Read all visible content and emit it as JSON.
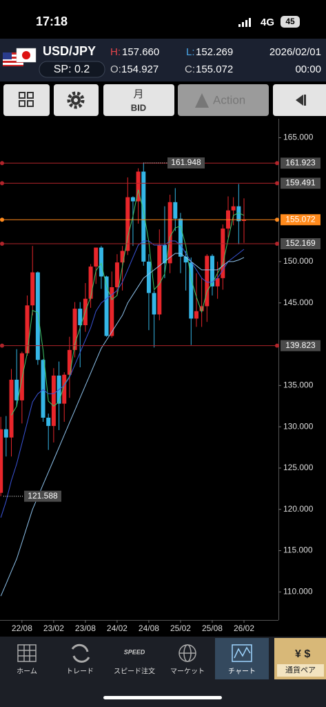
{
  "status": {
    "time": "17:18",
    "network": "4G",
    "battery": "45"
  },
  "header": {
    "pair": "USD/JPY",
    "spread": "SP: 0.2",
    "high_label": "H:",
    "high": "157.660",
    "low_label": "L:",
    "low": "152.269",
    "open_label": "O:",
    "open": "154.927",
    "close_label": "C:",
    "close": "155.072",
    "date": "2026/02/01",
    "time": "00:00"
  },
  "toolbar": {
    "period": "月",
    "price": "BID",
    "action": "Action"
  },
  "chart_data": {
    "type": "candlestick",
    "categories": [
      null,
      null,
      null,
      null,
      "22/08",
      null,
      null,
      null,
      null,
      null,
      "23/02",
      null,
      null,
      null,
      null,
      null,
      "23/08",
      null,
      null,
      null,
      null,
      null,
      "24/02",
      null,
      null,
      null,
      null,
      null,
      "24/08",
      null,
      null,
      null,
      null,
      null,
      "25/02",
      null,
      null,
      null,
      null,
      null,
      "25/08",
      null,
      null,
      null,
      null,
      null,
      "26/02"
    ],
    "open": [
      122.0,
      129.7,
      128.7,
      135.7,
      133.2,
      138.9,
      144.7,
      148.7,
      138.1,
      131.1,
      130.1,
      136.2,
      132.8,
      136.3,
      139.3,
      144.3,
      142.3,
      145.5,
      149.4,
      151.7,
      148.2,
      141.0,
      146.9,
      149.9,
      151.3,
      157.8,
      157.3,
      160.9,
      150.0,
      146.2,
      143.6,
      152.0,
      149.8,
      157.2,
      155.2,
      150.6,
      149.9,
      143.1,
      144.0,
      144.6,
      150.7,
      147.0,
      148.0,
      154.0,
      156.2,
      156.7,
      154.927
    ],
    "high": [
      131.2,
      131.3,
      137.0,
      139.4,
      139.1,
      145.9,
      151.9,
      148.8,
      138.2,
      131.6,
      137.1,
      137.9,
      136.6,
      140.9,
      145.1,
      145.1,
      147.4,
      149.7,
      151.7,
      151.9,
      148.3,
      148.8,
      150.9,
      151.9,
      160.2,
      157.9,
      161.3,
      161.948,
      150.9,
      146.5,
      153.9,
      156.7,
      158.1,
      158.9,
      155.9,
      151.3,
      150.5,
      148.6,
      148.0,
      150.9,
      150.9,
      150.0,
      154.5,
      157.9,
      157.8,
      159.4,
      157.66
    ],
    "low": [
      121.588,
      126.4,
      126.4,
      132.5,
      130.4,
      138.6,
      143.5,
      137.5,
      130.6,
      127.2,
      128.1,
      129.6,
      130.6,
      133.5,
      138.4,
      137.2,
      141.5,
      144.4,
      147.3,
      146.7,
      140.9,
      140.8,
      145.9,
      146.5,
      150.8,
      151.9,
      154.6,
      149.5,
      141.7,
      139.6,
      142.9,
      148.0,
      148.6,
      153.7,
      148.6,
      146.5,
      139.9,
      142.1,
      142.1,
      142.7,
      145.9,
      145.5,
      146.6,
      152.9,
      154.4,
      152.1,
      152.269
    ],
    "close": [
      129.7,
      128.7,
      135.7,
      133.2,
      138.9,
      144.7,
      148.7,
      138.1,
      131.1,
      130.1,
      136.2,
      132.8,
      136.3,
      139.3,
      144.3,
      142.3,
      145.5,
      149.4,
      151.7,
      148.2,
      141.0,
      146.9,
      149.9,
      151.3,
      157.8,
      157.3,
      160.9,
      150.0,
      146.2,
      143.6,
      152.0,
      149.8,
      157.2,
      155.2,
      150.6,
      149.9,
      143.1,
      144.0,
      144.6,
      150.7,
      147.0,
      148.0,
      154.0,
      156.2,
      156.7,
      154.9,
      155.072
    ],
    "up_color": "#e8262b",
    "down_color": "#35b6e6",
    "series": [
      {
        "color": "#3fc96a",
        "values": [
          null,
          null,
          131.4,
          132.5,
          135.9,
          138.9,
          144.1,
          143.8,
          139.3,
          133.1,
          132.5,
          133.0,
          135.1,
          136.1,
          140.0,
          142.0,
          144.0,
          145.7,
          148.9,
          149.8,
          147.0,
          145.4,
          145.9,
          149.4,
          153.0,
          155.5,
          158.7,
          156.1,
          152.4,
          146.6,
          147.3,
          148.5,
          153.0,
          154.1,
          154.3,
          151.9,
          147.9,
          145.7,
          143.9,
          146.4,
          147.4,
          148.6,
          149.7,
          152.7,
          155.6,
          155.9,
          155.6
        ]
      },
      {
        "color": "#3a54d8",
        "values": [
          119,
          121,
          123.5,
          125.5,
          128,
          130.5,
          133,
          134,
          134.5,
          134,
          134,
          134.5,
          135,
          136,
          137.5,
          139,
          140.5,
          142,
          144,
          145,
          145.5,
          146,
          146.5,
          147.5,
          149,
          150.5,
          152,
          152.5,
          152.5,
          152,
          152,
          152,
          152.5,
          152.5,
          152,
          151,
          150,
          149,
          148,
          147.5,
          147.5,
          148,
          149,
          150,
          150.5,
          151,
          151.5
        ]
      },
      {
        "color": "#8fc4ee",
        "values": [
          109.5,
          111,
          112.5,
          114,
          116,
          118,
          120,
          121.5,
          123,
          124.5,
          126,
          127.5,
          129,
          130.5,
          132,
          133.5,
          135,
          136.5,
          138,
          139.5,
          140.5,
          141.5,
          142.5,
          143.5,
          145,
          146,
          147,
          148,
          148.5,
          149,
          149.5,
          150,
          150.5,
          151,
          151,
          150.5,
          150,
          149.5,
          149,
          149,
          149,
          149,
          149.5,
          150,
          150,
          150.2,
          150.5
        ]
      }
    ],
    "ylim": [
      106.6,
      167.3
    ],
    "yticks": [
      {
        "value": 165,
        "label": "165.000"
      },
      {
        "value": 150,
        "label": "150.000"
      },
      {
        "value": 145,
        "label": "145.000"
      },
      {
        "value": 135,
        "label": "135.000"
      },
      {
        "value": 130,
        "label": "130.000"
      },
      {
        "value": 125,
        "label": "125.000"
      },
      {
        "value": 120,
        "label": "120.000"
      },
      {
        "value": 115,
        "label": "115.000"
      },
      {
        "value": 110,
        "label": "110.000"
      }
    ],
    "hlines": [
      {
        "value": 161.923,
        "color": "#b0242a"
      },
      {
        "value": 159.491,
        "color": "#b0242a"
      },
      {
        "value": 155.072,
        "color": "#ff8a1c"
      },
      {
        "value": 152.169,
        "color": "#b0242a"
      },
      {
        "value": 139.823,
        "color": "#b0242a"
      }
    ],
    "annotations": [
      161.948,
      121.588
    ]
  },
  "nav": {
    "home": "ホーム",
    "trade": "トレード",
    "speed_icon": "SPEED",
    "speed": "スピード注文",
    "market": "マーケット",
    "chart": "チャート",
    "pairs": "通貨ペア"
  }
}
